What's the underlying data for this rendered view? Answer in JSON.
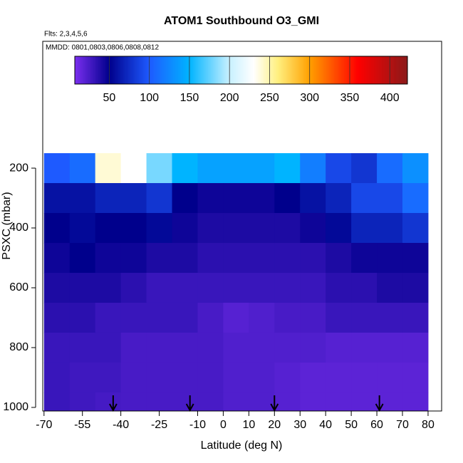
{
  "chart_data": {
    "type": "heatmap",
    "title": "ATOM1 Southbound O3_GMI",
    "subtitle": "Flts: 2,3,4,5,6",
    "annotation": "MMDD: 0801,0803,0806,0808,0812",
    "x_label": "Latitude (deg N)",
    "y_label": "PSXC (mbar)",
    "xlim": [
      -70.5,
      85.3
    ],
    "ylim": [
      1012,
      -224
    ],
    "xticks": [
      -70,
      -55,
      -40,
      -25,
      -10,
      0,
      10,
      20,
      30,
      40,
      50,
      60,
      70,
      80
    ],
    "yticks": [
      200,
      400,
      600,
      800,
      1000
    ],
    "x": [
      -65,
      -55,
      -45,
      -35,
      -25,
      -15,
      -5,
      5,
      15,
      25,
      35,
      45,
      55,
      65,
      75
    ],
    "y": [
      200,
      300,
      400,
      500,
      600,
      700,
      800,
      900,
      1000
    ],
    "z": [
      [
        100,
        110,
        240,
        230,
        180,
        150,
        140,
        140,
        140,
        150,
        120,
        90,
        80,
        110,
        130
      ],
      [
        60,
        60,
        70,
        70,
        80,
        50,
        45,
        45,
        45,
        50,
        60,
        70,
        90,
        90,
        110
      ],
      [
        50,
        55,
        50,
        50,
        55,
        45,
        40,
        40,
        40,
        40,
        45,
        55,
        70,
        70,
        80
      ],
      [
        45,
        50,
        45,
        45,
        40,
        40,
        35,
        35,
        35,
        35,
        35,
        40,
        45,
        45,
        45
      ],
      [
        40,
        40,
        40,
        35,
        30,
        30,
        30,
        30,
        30,
        30,
        30,
        35,
        35,
        40,
        40
      ],
      [
        35,
        35,
        30,
        30,
        30,
        30,
        25,
        20,
        22,
        25,
        25,
        30,
        30,
        30,
        30
      ],
      [
        30,
        30,
        30,
        25,
        25,
        25,
        25,
        22,
        22,
        22,
        22,
        20,
        20,
        20,
        20
      ],
      [
        30,
        28,
        28,
        25,
        25,
        25,
        25,
        22,
        22,
        20,
        18,
        18,
        18,
        18,
        18
      ],
      [
        30,
        28,
        26,
        25,
        25,
        25,
        25,
        22,
        22,
        20,
        18,
        18,
        18,
        18,
        18
      ]
    ],
    "colorbar_lim": [
      7,
      422
    ],
    "colorbar_ticks": [
      50,
      100,
      150,
      200,
      250,
      300,
      350,
      400
    ],
    "colormap": [
      {
        "at": 7,
        "color": "#7b2ff0"
      },
      {
        "at": 50,
        "color": "#00008c"
      },
      {
        "at": 100,
        "color": "#1e5aff"
      },
      {
        "at": 150,
        "color": "#00b4ff"
      },
      {
        "at": 200,
        "color": "#c8f0ff"
      },
      {
        "at": 230,
        "color": "#ffffff"
      },
      {
        "at": 260,
        "color": "#fff080"
      },
      {
        "at": 300,
        "color": "#ffa000"
      },
      {
        "at": 330,
        "color": "#ff5000"
      },
      {
        "at": 360,
        "color": "#ff0000"
      },
      {
        "at": 422,
        "color": "#8b1a1a"
      }
    ],
    "arrows_x": [
      -43,
      -13,
      20,
      61
    ]
  }
}
